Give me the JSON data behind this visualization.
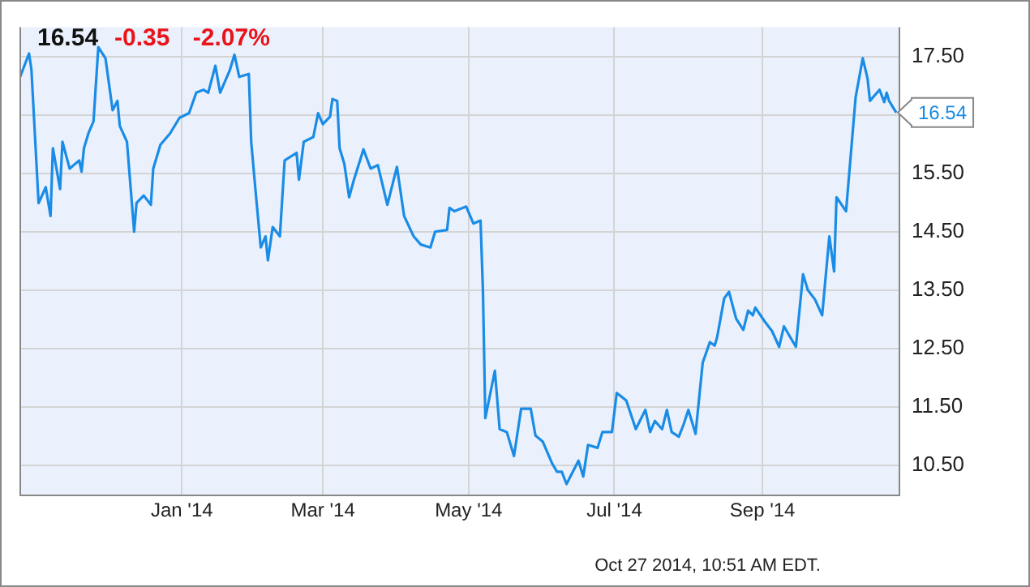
{
  "chart_data": {
    "type": "line",
    "title": "16.54",
    "subtitle": "-0.35 -2.07%",
    "x": [
      "2013-10-25",
      "2013-10-29",
      "2013-10-30",
      "2013-11-02",
      "2013-11-05",
      "2013-11-07",
      "2013-11-08",
      "2013-11-11",
      "2013-11-12",
      "2013-11-15",
      "2013-11-19",
      "2013-11-20",
      "2013-11-21",
      "2013-11-23",
      "2013-11-25",
      "2013-11-27",
      "2013-11-30",
      "2013-12-03",
      "2013-12-05",
      "2013-12-06",
      "2013-12-09",
      "2013-12-12",
      "2013-12-13",
      "2013-12-16",
      "2013-12-19",
      "2013-12-20",
      "2013-12-23",
      "2013-12-27",
      "2013-12-31",
      "2014-01-04",
      "2014-01-07",
      "2014-01-10",
      "2014-01-12",
      "2014-01-15",
      "2014-01-17",
      "2014-01-21",
      "2014-01-23",
      "2014-01-25",
      "2014-01-29",
      "2014-01-30",
      "2014-02-01",
      "2014-02-03",
      "2014-02-05",
      "2014-02-06",
      "2014-02-08",
      "2014-02-11",
      "2014-02-13",
      "2014-02-18",
      "2014-02-19",
      "2014-02-21",
      "2014-02-25",
      "2014-02-27",
      "2014-03-01",
      "2014-03-04",
      "2014-03-05",
      "2014-03-07",
      "2014-03-08",
      "2014-03-10",
      "2014-03-12",
      "2014-03-14",
      "2014-03-18",
      "2014-03-21",
      "2014-03-24",
      "2014-03-28",
      "2014-04-01",
      "2014-04-04",
      "2014-04-08",
      "2014-04-11",
      "2014-04-15",
      "2014-04-17",
      "2014-04-22",
      "2014-04-23",
      "2014-04-25",
      "2014-04-30",
      "2014-05-03",
      "2014-05-06",
      "2014-05-07",
      "2014-05-08",
      "2014-05-12",
      "2014-05-14",
      "2014-05-17",
      "2014-05-20",
      "2014-05-23",
      "2014-05-27",
      "2014-05-29",
      "2014-06-01",
      "2014-06-05",
      "2014-06-07",
      "2014-06-09",
      "2014-06-11",
      "2014-06-16",
      "2014-06-18",
      "2014-06-20",
      "2014-06-24",
      "2014-06-26",
      "2014-06-30",
      "2014-07-02",
      "2014-07-06",
      "2014-07-10",
      "2014-07-14",
      "2014-07-16",
      "2014-07-18",
      "2014-07-21",
      "2014-07-23",
      "2014-07-25",
      "2014-07-28",
      "2014-07-30",
      "2014-08-01",
      "2014-08-04",
      "2014-08-07",
      "2014-08-10",
      "2014-08-12",
      "2014-08-13",
      "2014-08-16",
      "2014-08-18",
      "2014-08-21",
      "2014-08-24",
      "2014-08-26",
      "2014-08-28",
      "2014-08-29",
      "2014-09-02",
      "2014-09-05",
      "2014-09-08",
      "2014-09-10",
      "2014-09-15",
      "2014-09-18",
      "2014-09-20",
      "2014-09-23",
      "2014-09-26",
      "2014-09-29",
      "2014-10-01",
      "2014-10-02",
      "2014-10-06",
      "2014-10-10",
      "2014-10-13",
      "2014-10-15",
      "2014-10-16",
      "2014-10-20",
      "2014-10-22",
      "2014-10-23",
      "2014-10-24",
      "2014-10-27"
    ],
    "series": [
      {
        "color": "#1a8ce6",
        "values": [
          17.12,
          17.55,
          17.28,
          14.99,
          15.26,
          14.77,
          15.93,
          15.23,
          16.04,
          15.58,
          15.72,
          15.53,
          15.93,
          16.2,
          16.39,
          17.66,
          17.47,
          16.58,
          16.74,
          16.31,
          16.04,
          14.5,
          14.99,
          15.12,
          14.96,
          15.58,
          15.99,
          16.18,
          16.45,
          16.53,
          16.88,
          16.93,
          16.88,
          17.34,
          16.88,
          17.26,
          17.53,
          17.15,
          17.2,
          16.04,
          15.12,
          14.23,
          14.42,
          14.01,
          14.58,
          14.42,
          15.72,
          15.85,
          15.39,
          16.04,
          16.12,
          16.53,
          16.34,
          16.47,
          16.77,
          16.74,
          15.93,
          15.66,
          15.09,
          15.39,
          15.91,
          15.58,
          15.64,
          14.96,
          15.61,
          14.77,
          14.42,
          14.28,
          14.23,
          14.5,
          14.53,
          14.91,
          14.85,
          14.93,
          14.64,
          14.69,
          13.5,
          11.31,
          12.12,
          11.12,
          11.07,
          10.66,
          11.47,
          11.47,
          11.01,
          10.91,
          10.53,
          10.39,
          10.39,
          10.18,
          10.58,
          10.31,
          10.85,
          10.8,
          11.07,
          11.07,
          11.74,
          11.61,
          11.12,
          11.45,
          11.07,
          11.26,
          11.12,
          11.45,
          11.07,
          10.99,
          11.2,
          11.45,
          11.04,
          12.26,
          12.61,
          12.55,
          12.69,
          13.36,
          13.47,
          13.01,
          12.82,
          13.15,
          13.07,
          13.2,
          12.96,
          12.8,
          12.53,
          12.88,
          12.53,
          13.77,
          13.5,
          13.34,
          13.07,
          14.42,
          13.82,
          15.09,
          14.85,
          16.8,
          17.47,
          17.12,
          16.74,
          16.93,
          16.72,
          16.88,
          16.74,
          16.54
        ]
      }
    ],
    "xlim": [
      "2013-10-25",
      "2014-10-28"
    ],
    "xticks": [
      {
        "value": "2014-01-01",
        "label": "Jan '14"
      },
      {
        "value": "2014-03-01",
        "label": "Mar '14"
      },
      {
        "value": "2014-05-01",
        "label": "May '14"
      },
      {
        "value": "2014-07-01",
        "label": "Jul '14"
      },
      {
        "value": "2014-09-01",
        "label": "Sep '14"
      }
    ],
    "ylim": [
      10,
      18
    ],
    "yticks": [
      {
        "value": 10.5,
        "label": "10.50"
      },
      {
        "value": 11.5,
        "label": "11.50"
      },
      {
        "value": 12.5,
        "label": "12.50"
      },
      {
        "value": 13.5,
        "label": "13.50"
      },
      {
        "value": 14.5,
        "label": "14.50"
      },
      {
        "value": 15.5,
        "label": "15.50"
      },
      {
        "value": 16.5,
        "label": null
      },
      {
        "value": 17.5,
        "label": "17.50"
      }
    ],
    "grid": true,
    "marker": "none",
    "line_style": "solid",
    "annotations": [
      {
        "text": "16.54",
        "x": "2014-10-27",
        "y": 16.54
      },
      "Oct 27 2014, 10:51 AM EDT."
    ]
  }
}
